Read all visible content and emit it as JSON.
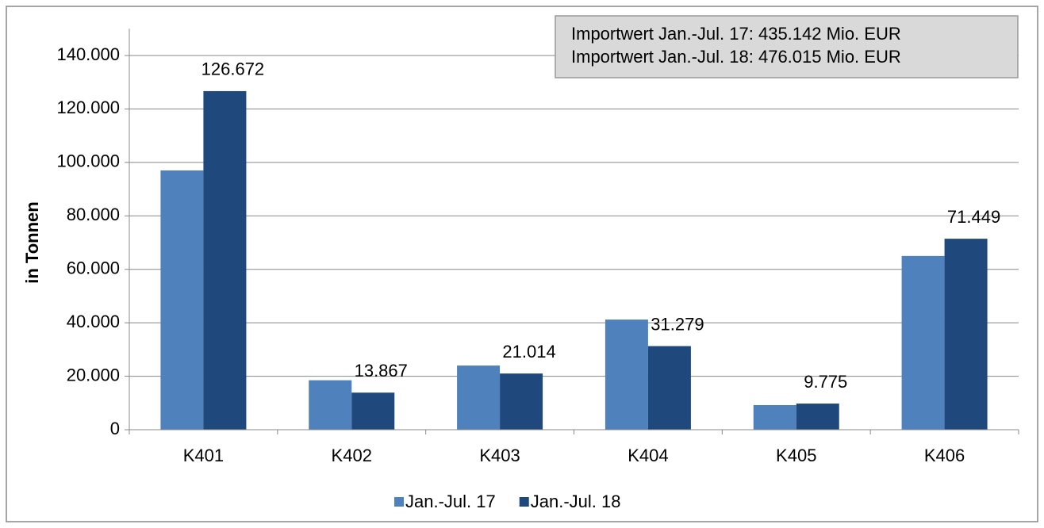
{
  "chart_data": {
    "type": "bar",
    "y_label": "in Tonnen",
    "annotations": [
      "Importwert Jan.-Jul. 17: 435.142 Mio. EUR",
      "Importwert Jan.-Jul. 18: 476.015 Mio. EUR"
    ],
    "categories": [
      "K401",
      "K402",
      "K403",
      "K404",
      "K405",
      "K406"
    ],
    "series": [
      {
        "name": "Jan.-Jul. 17",
        "color": "#4f81bd",
        "values": [
          97000,
          18500,
          24000,
          41200,
          9200,
          65000
        ]
      },
      {
        "name": "Jan.-Jul. 18",
        "color": "#1f497d",
        "values": [
          126672,
          13867,
          21014,
          31279,
          9775,
          71449
        ],
        "value_labels": [
          "126.672",
          "13.867",
          "21.014",
          "31.279",
          "9.775",
          "71.449"
        ]
      }
    ],
    "ylim": [
      0,
      150000
    ],
    "yticks": [
      0,
      {
        "value": 20000,
        "label": "20.000"
      },
      {
        "value": 40000,
        "label": "40.000"
      },
      {
        "value": 60000,
        "label": "60.000"
      },
      {
        "value": 80000,
        "label": "80.000"
      },
      {
        "value": 100000,
        "label": "100.000"
      },
      {
        "value": 120000,
        "label": "120.000"
      },
      {
        "value": 140000,
        "label": "140.000"
      }
    ],
    "grid": true,
    "legend": "bottom"
  }
}
